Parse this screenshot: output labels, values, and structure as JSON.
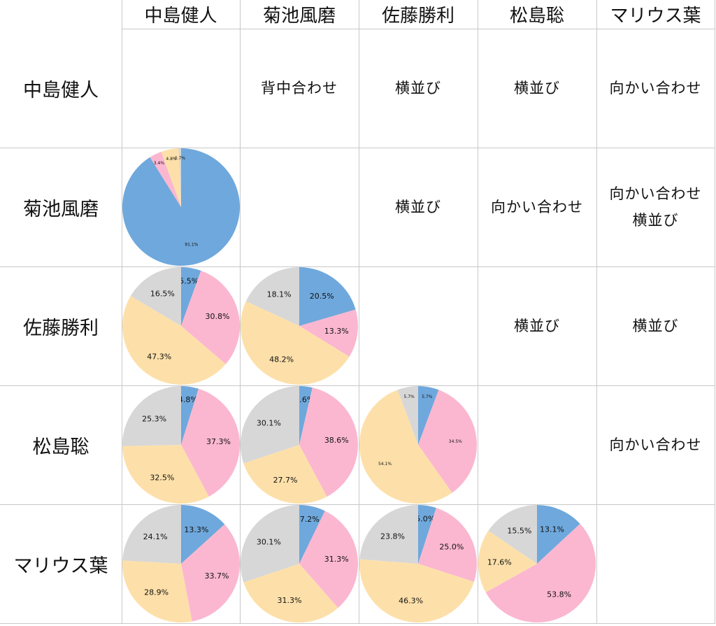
{
  "colors": {
    "blue": "#6fa8dc",
    "pink": "#fbb7d0",
    "yellow": "#fde0a9",
    "gray": "#d7d7d7",
    "grid": "#c8c8c8"
  },
  "columns": [
    "中島健人",
    "菊池風磨",
    "佐藤勝利",
    "松島聡",
    "マリウス葉"
  ],
  "rows": [
    "中島健人",
    "菊池風磨",
    "佐藤勝利",
    "松島聡",
    "マリウス葉"
  ],
  "positions": [
    {
      "row": 0,
      "col": 1,
      "lines": [
        "背中合わせ"
      ]
    },
    {
      "row": 0,
      "col": 2,
      "lines": [
        "横並び"
      ]
    },
    {
      "row": 0,
      "col": 3,
      "lines": [
        "横並び"
      ]
    },
    {
      "row": 0,
      "col": 4,
      "lines": [
        "向かい合わせ"
      ]
    },
    {
      "row": 1,
      "col": 2,
      "lines": [
        "横並び"
      ]
    },
    {
      "row": 1,
      "col": 3,
      "lines": [
        "向かい合わせ"
      ]
    },
    {
      "row": 1,
      "col": 4,
      "lines": [
        "向かい合わせ",
        "横並び"
      ]
    },
    {
      "row": 2,
      "col": 3,
      "lines": [
        "横並び"
      ]
    },
    {
      "row": 2,
      "col": 4,
      "lines": [
        "横並び"
      ]
    },
    {
      "row": 3,
      "col": 4,
      "lines": [
        "向かい合わせ"
      ]
    }
  ],
  "chart_data": [
    {
      "type": "pie",
      "row": 1,
      "col": 0,
      "small_labels": true,
      "slices": [
        {
          "color": "blue",
          "value": 91.1,
          "label": "91.1%"
        },
        {
          "color": "pink",
          "value": 3.4,
          "label": "3.4%"
        },
        {
          "color": "yellow",
          "value": 4.8,
          "label": "4.8%"
        },
        {
          "color": "gray",
          "value": 0.7,
          "label": "0.7%"
        }
      ]
    },
    {
      "type": "pie",
      "row": 2,
      "col": 0,
      "slices": [
        {
          "color": "blue",
          "value": 5.5,
          "label": "5.5%"
        },
        {
          "color": "pink",
          "value": 30.8,
          "label": "30.8%"
        },
        {
          "color": "yellow",
          "value": 47.3,
          "label": "47.3%"
        },
        {
          "color": "gray",
          "value": 16.5,
          "label": "16.5%"
        }
      ]
    },
    {
      "type": "pie",
      "row": 2,
      "col": 1,
      "slices": [
        {
          "color": "blue",
          "value": 20.5,
          "label": "20.5%"
        },
        {
          "color": "pink",
          "value": 13.3,
          "label": "13.3%"
        },
        {
          "color": "yellow",
          "value": 48.2,
          "label": "48.2%"
        },
        {
          "color": "gray",
          "value": 18.1,
          "label": "18.1%"
        }
      ]
    },
    {
      "type": "pie",
      "row": 3,
      "col": 0,
      "slices": [
        {
          "color": "blue",
          "value": 4.8,
          "label": "4.8%"
        },
        {
          "color": "pink",
          "value": 37.3,
          "label": "37.3%"
        },
        {
          "color": "yellow",
          "value": 32.5,
          "label": "32.5%"
        },
        {
          "color": "gray",
          "value": 25.3,
          "label": "25.3%"
        }
      ]
    },
    {
      "type": "pie",
      "row": 3,
      "col": 1,
      "slices": [
        {
          "color": "blue",
          "value": 3.6,
          "label": "3.6%"
        },
        {
          "color": "pink",
          "value": 38.6,
          "label": "38.6%"
        },
        {
          "color": "yellow",
          "value": 27.7,
          "label": "27.7%"
        },
        {
          "color": "gray",
          "value": 30.1,
          "label": "30.1%"
        }
      ]
    },
    {
      "type": "pie",
      "row": 3,
      "col": 2,
      "small_labels": true,
      "slices": [
        {
          "color": "blue",
          "value": 5.7,
          "label": "5.7%"
        },
        {
          "color": "pink",
          "value": 34.5,
          "label": "34.5%"
        },
        {
          "color": "yellow",
          "value": 54.1,
          "label": "54.1%"
        },
        {
          "color": "gray",
          "value": 5.7,
          "label": "5.7%"
        }
      ]
    },
    {
      "type": "pie",
      "row": 4,
      "col": 0,
      "slices": [
        {
          "color": "blue",
          "value": 13.3,
          "label": "13.3%"
        },
        {
          "color": "pink",
          "value": 33.7,
          "label": "33.7%"
        },
        {
          "color": "yellow",
          "value": 28.9,
          "label": "28.9%"
        },
        {
          "color": "gray",
          "value": 24.1,
          "label": "24.1%"
        }
      ]
    },
    {
      "type": "pie",
      "row": 4,
      "col": 1,
      "slices": [
        {
          "color": "blue",
          "value": 7.2,
          "label": "7.2%"
        },
        {
          "color": "pink",
          "value": 31.3,
          "label": "31.3%"
        },
        {
          "color": "yellow",
          "value": 31.3,
          "label": "31.3%"
        },
        {
          "color": "gray",
          "value": 30.1,
          "label": "30.1%"
        }
      ]
    },
    {
      "type": "pie",
      "row": 4,
      "col": 2,
      "slices": [
        {
          "color": "blue",
          "value": 5.0,
          "label": "5.0%"
        },
        {
          "color": "pink",
          "value": 25.0,
          "label": "25.0%"
        },
        {
          "color": "yellow",
          "value": 46.3,
          "label": "46.3%"
        },
        {
          "color": "gray",
          "value": 23.8,
          "label": "23.8%"
        }
      ]
    },
    {
      "type": "pie",
      "row": 4,
      "col": 3,
      "slices": [
        {
          "color": "blue",
          "value": 13.1,
          "label": "13.1%"
        },
        {
          "color": "pink",
          "value": 53.8,
          "label": "53.8%"
        },
        {
          "color": "yellow",
          "value": 17.6,
          "label": "17.6%"
        },
        {
          "color": "gray",
          "value": 15.5,
          "label": "15.5%"
        }
      ]
    }
  ]
}
